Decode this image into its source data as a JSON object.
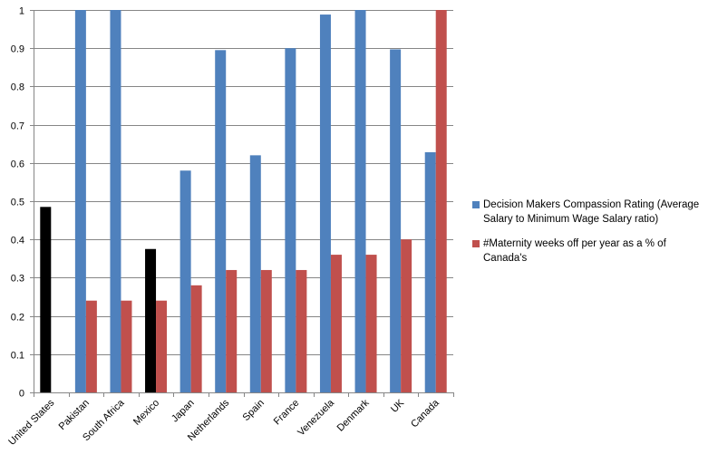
{
  "chart_data": {
    "type": "bar",
    "title": "",
    "xlabel": "",
    "ylabel": "",
    "ylim": [
      0,
      1
    ],
    "yticks": [
      "0",
      "0.1",
      "0.2",
      "0.3",
      "0.4",
      "0.5",
      "0.6",
      "0.7",
      "0.8",
      "0.9",
      "1"
    ],
    "grid": true,
    "legend_position": "right",
    "categories": [
      "United States",
      "Pakistan",
      "South Africa",
      "Mexico",
      "Japan",
      "Netherlands",
      "Spain",
      "France",
      "Venezuela",
      "Denmark",
      "UK",
      "Canada"
    ],
    "series": [
      {
        "name": "Decision Makers Compassion  Rating (Average Salary to Minimum  Wage Salary ratio)",
        "color": "#4f81bd",
        "values": [
          0.485,
          1.0,
          1.0,
          0.375,
          0.58,
          0.895,
          0.62,
          0.9,
          0.988,
          1.0,
          0.897,
          0.628
        ],
        "point_colors": [
          "#000000",
          null,
          null,
          "#000000",
          null,
          null,
          null,
          null,
          null,
          null,
          null,
          null
        ]
      },
      {
        "name": "#Maternity weeks off per year as a % of Canada's",
        "color": "#c0504d",
        "values": [
          0,
          0.24,
          0.24,
          0.24,
          0.28,
          0.32,
          0.32,
          0.32,
          0.36,
          0.36,
          0.4,
          1.0
        ]
      }
    ]
  }
}
